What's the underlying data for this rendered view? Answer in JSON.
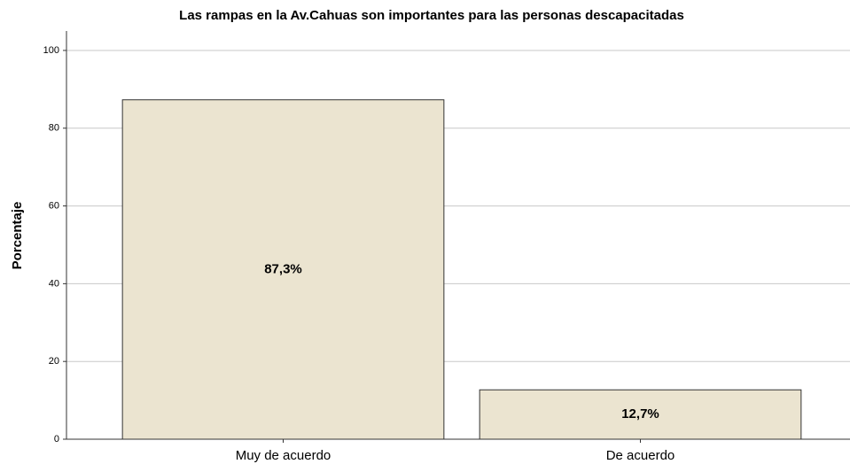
{
  "chart_data": {
    "type": "bar",
    "title": "Las rampas en la Av.Cahuas son importantes para las personas descapacitadas",
    "ylabel": "Porcentaje",
    "categories": [
      "Muy de acuerdo",
      "De acuerdo"
    ],
    "values": [
      87.3,
      12.7
    ],
    "value_labels": [
      "87,3%",
      "12,7%"
    ],
    "color": "#ebe4d0",
    "ylim": [
      0,
      105
    ],
    "yticks": [
      0,
      20,
      40,
      60,
      80,
      100
    ],
    "grid": true
  }
}
